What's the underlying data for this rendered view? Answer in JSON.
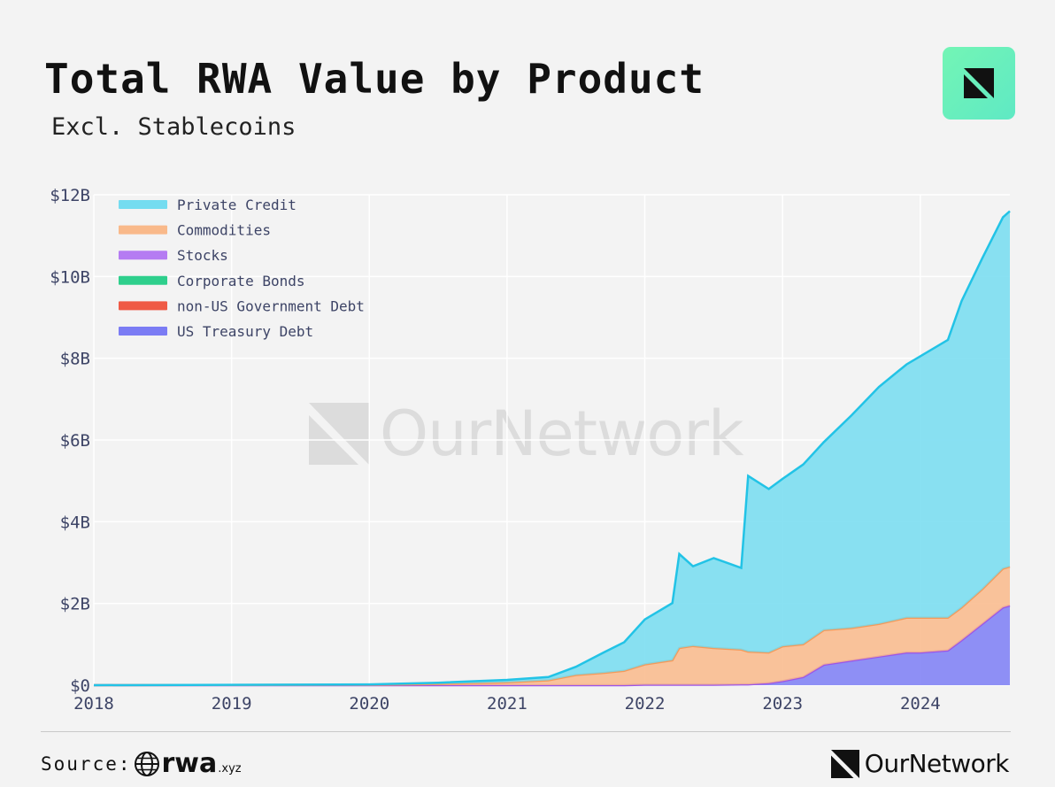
{
  "header": {
    "title": "Total RWA Value by Product",
    "subtitle": "Excl. Stablecoins"
  },
  "watermark": {
    "text": "OurNetwork"
  },
  "footer": {
    "source_label": "Source:",
    "source_brand": "rwa",
    "source_tld": ".xyz",
    "brand": "OurNetwork"
  },
  "colors": {
    "accent_tile": "#6ff0b8",
    "background": "#f3f3f3"
  },
  "chart_data": {
    "type": "area",
    "stacked": true,
    "y_tick_labels": [
      "$0",
      "$2B",
      "$4B",
      "$6B",
      "$8B",
      "$10B",
      "$12B"
    ],
    "y_ticks": [
      0,
      2,
      4,
      6,
      8,
      10,
      12
    ],
    "x_tick_labels": [
      "2018",
      "2019",
      "2020",
      "2021",
      "2022",
      "2023",
      "2024"
    ],
    "x_ticks": [
      2018.0,
      2019.0,
      2020.0,
      2021.0,
      2022.0,
      2023.0,
      2024.0
    ],
    "xlim": [
      2018.0,
      2024.65
    ],
    "ylim": [
      0,
      12
    ],
    "grid": true,
    "legend_position": "top-left",
    "x": [
      2018.0,
      2020.0,
      2020.5,
      2021.0,
      2021.3,
      2021.5,
      2021.7,
      2021.85,
      2022.0,
      2022.2,
      2022.25,
      2022.35,
      2022.5,
      2022.7,
      2022.75,
      2022.9,
      2023.0,
      2023.15,
      2023.3,
      2023.5,
      2023.7,
      2023.9,
      2024.0,
      2024.2,
      2024.3,
      2024.45,
      2024.6,
      2024.65
    ],
    "series": [
      {
        "name": "US Treasury Debt",
        "color": "#7b7cf4",
        "values": [
          0,
          0,
          0,
          0,
          0,
          0,
          0,
          0,
          0.01,
          0.01,
          0.01,
          0.01,
          0.01,
          0.02,
          0.02,
          0.05,
          0.1,
          0.2,
          0.5,
          0.6,
          0.7,
          0.8,
          0.8,
          0.85,
          1.1,
          1.5,
          1.9,
          1.95
        ]
      },
      {
        "name": "non-US Government Debt",
        "color": "#ef5a45",
        "values": [
          0,
          0,
          0,
          0,
          0,
          0,
          0,
          0,
          0,
          0,
          0,
          0,
          0,
          0,
          0,
          0,
          0,
          0,
          0,
          0,
          0,
          0,
          0,
          0,
          0,
          0,
          0,
          0
        ]
      },
      {
        "name": "Corporate Bonds",
        "color": "#2ecf8c",
        "values": [
          0,
          0,
          0,
          0,
          0,
          0,
          0,
          0,
          0,
          0,
          0,
          0,
          0,
          0,
          0,
          0,
          0,
          0,
          0,
          0,
          0,
          0,
          0,
          0,
          0,
          0,
          0,
          0
        ]
      },
      {
        "name": "Stocks",
        "color": "#b57cf2",
        "values": [
          0,
          0,
          0,
          0,
          0,
          0,
          0,
          0,
          0,
          0,
          0,
          0,
          0,
          0,
          0,
          0,
          0,
          0,
          0,
          0,
          0,
          0,
          0,
          0,
          0,
          0,
          0,
          0
        ]
      },
      {
        "name": "Commodities",
        "color": "#f9b98a",
        "values": [
          0,
          0.01,
          0.03,
          0.07,
          0.12,
          0.25,
          0.3,
          0.35,
          0.5,
          0.6,
          0.9,
          0.95,
          0.9,
          0.85,
          0.8,
          0.75,
          0.85,
          0.8,
          0.85,
          0.8,
          0.8,
          0.85,
          0.85,
          0.8,
          0.8,
          0.85,
          0.95,
          0.95
        ]
      },
      {
        "name": "Private Credit",
        "color": "#74dcf0",
        "values": [
          0,
          0.01,
          0.03,
          0.06,
          0.08,
          0.2,
          0.5,
          0.7,
          1.1,
          1.4,
          2.3,
          1.95,
          2.2,
          2.0,
          4.3,
          4.0,
          4.1,
          4.4,
          4.6,
          5.2,
          5.8,
          6.2,
          6.4,
          6.8,
          7.5,
          8.1,
          8.6,
          8.7
        ]
      }
    ]
  }
}
